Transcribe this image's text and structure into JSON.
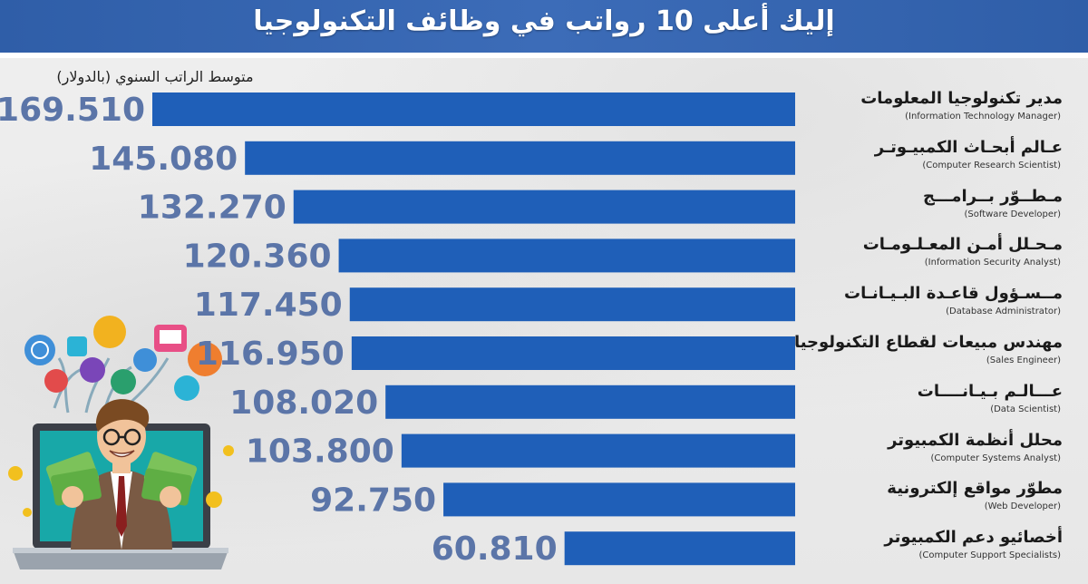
{
  "header": {
    "title": "إليك أعلى 10 رواتب في وظائف التكنولوجيا"
  },
  "chart_data": {
    "type": "bar",
    "orientation": "horizontal",
    "ylabel": "متوسط الراتب السنوي (بالدولار)",
    "categories": [
      {
        "ar": "مدير تكنولوجيا المعلومات",
        "en": "(Information Technology Manager)"
      },
      {
        "ar": "عـالم أبحـاث الكمبيـوتـر",
        "en": "(Computer Research Scientist)"
      },
      {
        "ar": "مـطــوّر بــرامـــج",
        "en": "(Software Developer)"
      },
      {
        "ar": "مـحـلل أمـن المعـلـومـات",
        "en": "(Information Security Analyst)"
      },
      {
        "ar": "مــسـؤول قاعـدة البـيـانـات",
        "en": "(Database Administrator)"
      },
      {
        "ar": "مهندس مبيعات لقطاع التكنولوجيا",
        "en": "(Sales Engineer)"
      },
      {
        "ar": "عـــالـم بـيـانــــات",
        "en": "(Data Scientist)"
      },
      {
        "ar": "محلل أنظمة الكمبيوتر",
        "en": "(Computer Systems Analyst)"
      },
      {
        "ar": "مطوّر مواقع إلكترونية",
        "en": "(Web Developer)"
      },
      {
        "ar": "أخصائيو دعم الكمبيوتر",
        "en": "(Computer Support Specialists)"
      }
    ],
    "values": [
      169510,
      145080,
      132270,
      120360,
      117450,
      116950,
      108020,
      103800,
      92750,
      60810
    ],
    "value_labels": [
      "169.510",
      "145.080",
      "132.270",
      "120.360",
      "117.450",
      "116.950",
      "108.020",
      "103.800",
      "92.750",
      "60.810"
    ],
    "bar_color": "#1f5fb8",
    "value_label_color": "#5b75a8",
    "grid": false,
    "legend": "none"
  },
  "colors": {
    "header": "#2f5ea8",
    "background": "#ececec"
  }
}
